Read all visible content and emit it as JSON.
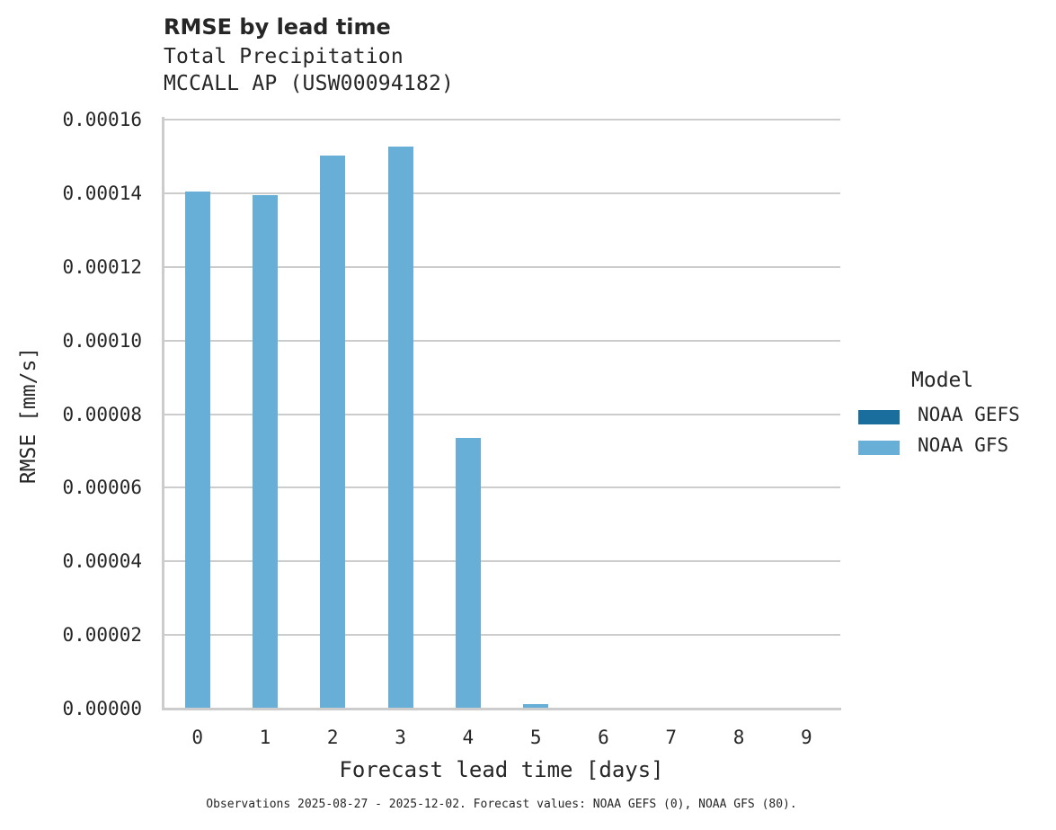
{
  "header": {
    "title": "RMSE by lead time",
    "subtitle_line1": "Total Precipitation",
    "subtitle_line2": "MCCALL AP (USW00094182)"
  },
  "axes": {
    "xlabel": "Forecast lead time [days]",
    "ylabel": "RMSE [mm/s]",
    "yticks": [
      "0.00000",
      "0.00002",
      "0.00004",
      "0.00006",
      "0.00008",
      "0.00010",
      "0.00012",
      "0.00014",
      "0.00016"
    ],
    "xticks": [
      "0",
      "1",
      "2",
      "3",
      "4",
      "5",
      "6",
      "7",
      "8",
      "9"
    ]
  },
  "legend": {
    "title": "Model",
    "items": [
      {
        "label": "NOAA GEFS",
        "color": "#1a6e9e"
      },
      {
        "label": "NOAA GFS",
        "color": "#67afd6"
      }
    ]
  },
  "footnote": "Observations 2025-08-27 - 2025-12-02. Forecast values: NOAA GEFS (0), NOAA GFS (80).",
  "chart_data": {
    "type": "bar",
    "title": "RMSE by lead time",
    "subtitle": "Total Precipitation — MCCALL AP (USW00094182)",
    "xlabel": "Forecast lead time [days]",
    "ylabel": "RMSE [mm/s]",
    "categories": [
      "0",
      "1",
      "2",
      "3",
      "4",
      "5",
      "6",
      "7",
      "8",
      "9"
    ],
    "series": [
      {
        "name": "NOAA GEFS",
        "color": "#1a6e9e",
        "values": [
          null,
          null,
          null,
          null,
          null,
          null,
          null,
          null,
          null,
          null
        ]
      },
      {
        "name": "NOAA GFS",
        "color": "#67afd6",
        "values": [
          0.0001404,
          0.0001395,
          0.0001502,
          0.0001527,
          7.35e-05,
          1.2e-06,
          null,
          null,
          null,
          null
        ]
      }
    ],
    "ylim": [
      0,
      0.00016
    ],
    "grid": "horizontal",
    "legend_position": "right",
    "annotation": "Observations 2025-08-27 - 2025-12-02. Forecast values: NOAA GEFS (0), NOAA GFS (80)."
  }
}
